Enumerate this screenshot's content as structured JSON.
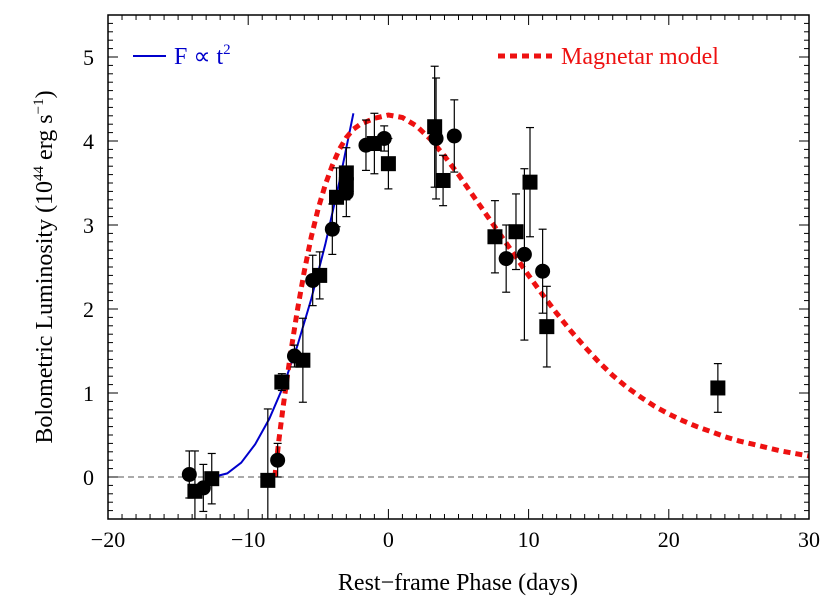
{
  "chart_data": {
    "type": "scatter",
    "xlabel": "Rest−frame Phase (days)",
    "ylabel_main": "Bolometric Luminosity (10",
    "ylabel_exp": "44",
    "ylabel_unit": " erg s",
    "ylabel_unit_exp": "−1",
    "ylabel_close": ")",
    "xlim": [
      -20,
      30
    ],
    "ylim": [
      -0.5,
      5.5
    ],
    "xticks": [
      -20,
      -10,
      0,
      10,
      20,
      30
    ],
    "xtick_labels": [
      "−20",
      "−10",
      "0",
      "10",
      "20",
      "30"
    ],
    "yticks": [
      0,
      1,
      2,
      3,
      4,
      5
    ],
    "ytick_labels": [
      "0",
      "1",
      "2",
      "3",
      "4",
      "5"
    ],
    "zero_line": 0,
    "legend": {
      "placement": "top",
      "blue_label_main": "F ∝ t",
      "blue_label_exp": "2",
      "red_label": "Magnetar model"
    },
    "colors": {
      "power_law": "#0000cc",
      "magnetar": "#ee1111",
      "points": "#000000",
      "zero_line": "#555555"
    },
    "series": [
      {
        "name": "circles",
        "marker": "circle",
        "points": [
          {
            "x": -14.2,
            "y": 0.03,
            "err": 0.28
          },
          {
            "x": -13.2,
            "y": -0.13,
            "err": 0.28
          },
          {
            "x": -7.9,
            "y": 0.2,
            "err": 0.2
          },
          {
            "x": -6.7,
            "y": 1.44,
            "err": 0.13
          },
          {
            "x": -5.4,
            "y": 2.34,
            "err": 0.3
          },
          {
            "x": -4.0,
            "y": 2.95,
            "err": 0.3
          },
          {
            "x": -3.0,
            "y": 3.38,
            "err": 0.28
          },
          {
            "x": -1.6,
            "y": 3.95,
            "err": 0.3
          },
          {
            "x": -0.3,
            "y": 4.03,
            "err": 0.15
          },
          {
            "x": 3.4,
            "y": 4.03,
            "err": 0.72
          },
          {
            "x": 4.7,
            "y": 4.06,
            "err": 0.43
          },
          {
            "x": 8.4,
            "y": 2.6,
            "err": 0.4
          },
          {
            "x": 9.7,
            "y": 2.65,
            "err": 1.02
          },
          {
            "x": 11.0,
            "y": 2.45,
            "err": 0.5
          }
        ]
      },
      {
        "name": "squares",
        "marker": "square",
        "points": [
          {
            "x": -13.8,
            "y": -0.17,
            "err": 0.48
          },
          {
            "x": -12.6,
            "y": -0.02,
            "err": 0.3
          },
          {
            "x": -8.6,
            "y": -0.04,
            "err": 0.85
          },
          {
            "x": -7.6,
            "y": 1.13,
            "err": 0.1
          },
          {
            "x": -6.1,
            "y": 1.39,
            "err": 0.5
          },
          {
            "x": -4.9,
            "y": 2.4,
            "err": 0.28
          },
          {
            "x": -3.7,
            "y": 3.33,
            "err": 0.35
          },
          {
            "x": -3.0,
            "y": 3.48,
            "err": 0.18
          },
          {
            "x": -3.0,
            "y": 3.62,
            "err": 0.3
          },
          {
            "x": -1.0,
            "y": 3.97,
            "err": 0.36
          },
          {
            "x": 0.0,
            "y": 3.73,
            "err": 0.3
          },
          {
            "x": 3.3,
            "y": 4.17,
            "err": 0.72
          },
          {
            "x": 3.9,
            "y": 3.53,
            "err": 0.3
          },
          {
            "x": 7.6,
            "y": 2.86,
            "err": 0.43
          },
          {
            "x": 9.1,
            "y": 2.92,
            "err": 0.45
          },
          {
            "x": 10.1,
            "y": 3.51,
            "err": 0.65
          },
          {
            "x": 11.3,
            "y": 1.79,
            "err": 0.48
          },
          {
            "x": 23.5,
            "y": 1.06,
            "err": 0.29
          }
        ]
      }
    ],
    "curves": [
      {
        "name": "power_law",
        "style": "solid",
        "x": [
          -12.5,
          -11.5,
          -10.5,
          -9.5,
          -8.5,
          -7.5,
          -6.5,
          -5.5,
          -4.5,
          -3.5,
          -2.5
        ],
        "y": [
          0.0,
          0.043,
          0.17,
          0.39,
          0.69,
          1.08,
          1.56,
          2.12,
          2.77,
          3.51,
          4.33
        ]
      },
      {
        "name": "magnetar",
        "style": "dashed",
        "x": [
          -8.1,
          -7.8,
          -7.5,
          -7.0,
          -6.5,
          -6.0,
          -5.5,
          -5.0,
          -4.5,
          -4.0,
          -3.5,
          -3.0,
          -2.5,
          -2.0,
          -1.0,
          0.0,
          1.0,
          2.0,
          3.0,
          4.0,
          5.0,
          6.0,
          7.0,
          8.0,
          9.0,
          10.0,
          11.0,
          12.0,
          13.0,
          14.0,
          15.0,
          16.0,
          17.0,
          18.0,
          19.0,
          20.0,
          21.0,
          22.0,
          23.0,
          24.0,
          25.0,
          26.0,
          27.0,
          28.0,
          29.0,
          30.0
        ],
        "y": [
          0.0,
          0.45,
          0.85,
          1.45,
          1.98,
          2.45,
          2.86,
          3.2,
          3.48,
          3.71,
          3.9,
          4.04,
          4.14,
          4.2,
          4.27,
          4.31,
          4.28,
          4.18,
          4.02,
          3.82,
          3.6,
          3.36,
          3.12,
          2.88,
          2.64,
          2.4,
          2.17,
          1.95,
          1.74,
          1.55,
          1.37,
          1.21,
          1.07,
          0.95,
          0.84,
          0.75,
          0.67,
          0.6,
          0.54,
          0.48,
          0.43,
          0.39,
          0.35,
          0.31,
          0.28,
          0.25
        ]
      }
    ]
  }
}
